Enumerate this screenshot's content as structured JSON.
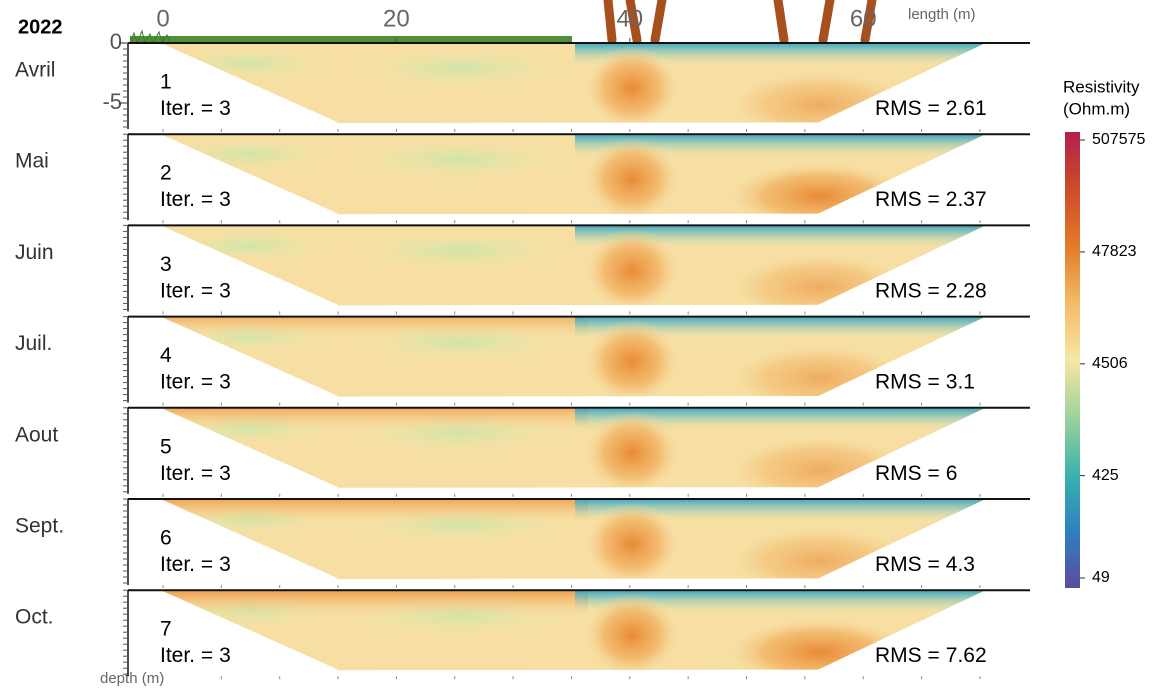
{
  "year": "2022",
  "x_axis": {
    "label": "length (m)",
    "ticks": [
      0,
      20,
      40,
      60
    ]
  },
  "y_axis": {
    "label": "depth (m)",
    "ticks": [
      0,
      -5
    ]
  },
  "panels": [
    {
      "month": "Avril",
      "number": 1,
      "iter_label": "Iter. =",
      "iter": 3,
      "rms_label": "RMS =",
      "rms": 2.61
    },
    {
      "month": "Mai",
      "number": 2,
      "iter_label": "Iter. =",
      "iter": 3,
      "rms_label": "RMS =",
      "rms": 2.37
    },
    {
      "month": "Juin",
      "number": 3,
      "iter_label": "Iter. =",
      "iter": 3,
      "rms_label": "RMS =",
      "rms": 2.28
    },
    {
      "month": "Juil.",
      "number": 4,
      "iter_label": "Iter. =",
      "iter": 3,
      "rms_label": "RMS =",
      "rms": 3.1
    },
    {
      "month": "Aout",
      "number": 5,
      "iter_label": "Iter. =",
      "iter": 3,
      "rms_label": "RMS =",
      "rms": 6
    },
    {
      "month": "Sept.",
      "number": 6,
      "iter_label": "Iter. =",
      "iter": 3,
      "rms_label": "RMS =",
      "rms": 4.3
    },
    {
      "month": "Oct.",
      "number": 7,
      "iter_label": "Iter. =",
      "iter": 3,
      "rms_label": "RMS =",
      "rms": 7.62
    }
  ],
  "colorbar": {
    "title": "Resistivity",
    "unit": "(Ohm.m)",
    "log": true,
    "ticks": [
      49,
      425,
      4506,
      47823,
      507575
    ]
  }
}
